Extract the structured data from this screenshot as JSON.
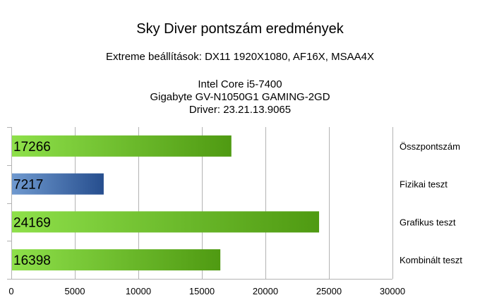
{
  "chart_data": {
    "type": "bar",
    "orientation": "horizontal",
    "title": "Sky Diver pontszám eredmények",
    "subtitles": [
      "Extreme beállítások: DX11 1920X1080, AF16X, MSAA4X",
      "",
      "Intel Core i5-7400",
      "Gigabyte GV-N1050G1 GAMING-2GD",
      "Driver: 23.21.13.9065"
    ],
    "categories": [
      "Összpontszám",
      "Fizikai teszt",
      "Grafikus teszt",
      "Kombinált teszt"
    ],
    "values": [
      17266,
      7217,
      24169,
      16398
    ],
    "value_labels": [
      "17266",
      "7217",
      "24169",
      "16398"
    ],
    "bar_colors": [
      "green",
      "blue",
      "green",
      "green"
    ],
    "xlim": [
      0,
      30000
    ],
    "x_ticks": [
      0,
      5000,
      10000,
      15000,
      20000,
      25000,
      30000
    ],
    "x_tick_labels": [
      "0",
      "5000",
      "10000",
      "15000",
      "20000",
      "25000",
      "30000"
    ],
    "grid": "vertical",
    "category_labels_position": "right"
  },
  "colors": {
    "green_light": "#8ee04a",
    "green_dark": "#4f9a12",
    "blue_light": "#6f99cf",
    "blue_dark": "#264e8e",
    "grid": "#b3b3b3",
    "axis": "#b3b3b3"
  }
}
